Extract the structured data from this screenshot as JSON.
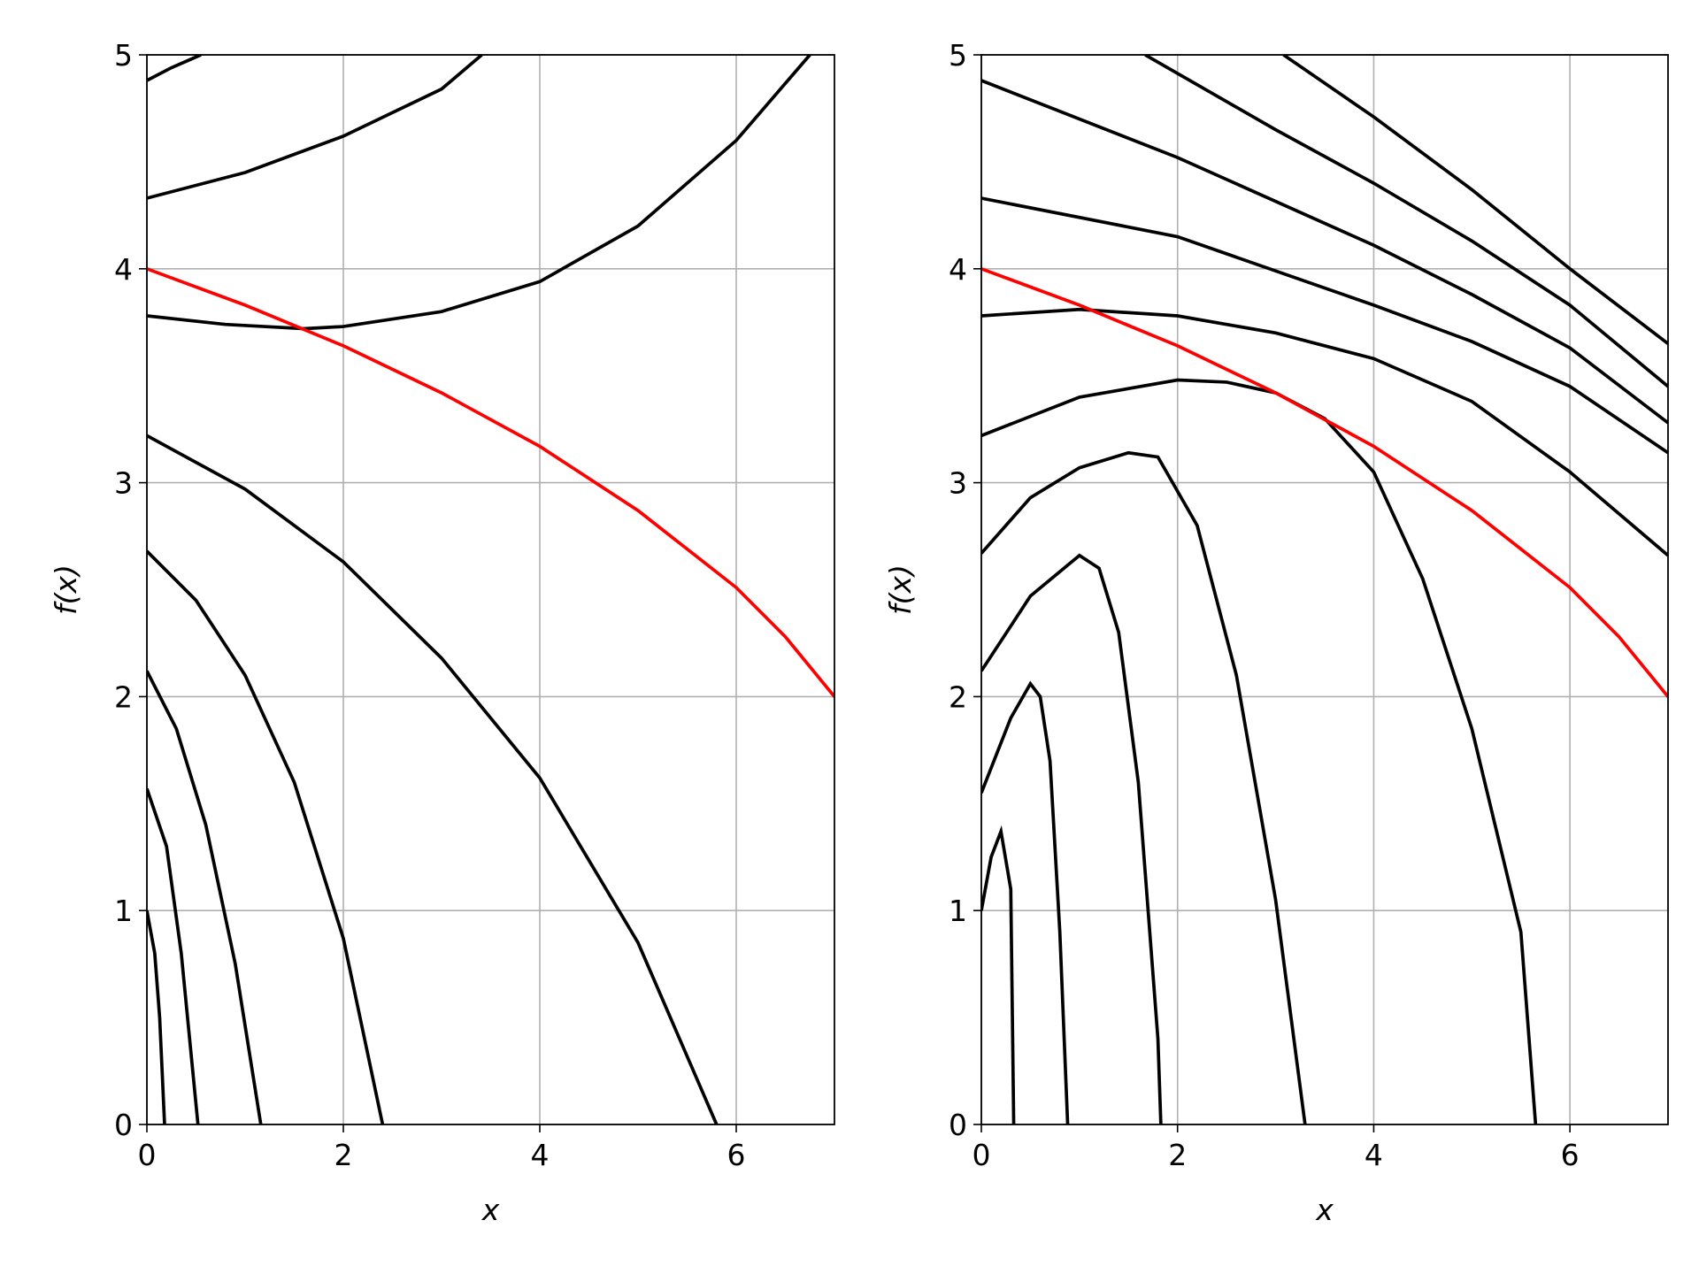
{
  "chart_data": [
    {
      "type": "line",
      "xlabel": "x",
      "ylabel": "f(x)",
      "xlim": [
        0,
        7
      ],
      "ylim": [
        0,
        5
      ],
      "xticks": [
        0,
        2,
        4,
        6
      ],
      "yticks": [
        0,
        1,
        2,
        3,
        4,
        5
      ],
      "grid": true,
      "series": [
        {
          "color": "#000000",
          "x": [
            0,
            0.25,
            0.55
          ],
          "values": [
            4.88,
            4.94,
            5
          ]
        },
        {
          "color": "#000000",
          "x": [
            0,
            1,
            2,
            3,
            3.41
          ],
          "values": [
            4.33,
            4.45,
            4.62,
            4.84,
            5
          ]
        },
        {
          "color": "#000000",
          "x": [
            0,
            0.8,
            1.6,
            2,
            3,
            4,
            5,
            6,
            6.75
          ],
          "values": [
            3.78,
            3.74,
            3.72,
            3.73,
            3.8,
            3.94,
            4.2,
            4.6,
            5
          ]
        },
        {
          "color": "#000000",
          "x": [
            0,
            1,
            2,
            3,
            4,
            5,
            5.8
          ],
          "values": [
            3.22,
            2.97,
            2.63,
            2.18,
            1.62,
            0.85,
            0
          ]
        },
        {
          "color": "#000000",
          "x": [
            0,
            0.5,
            1,
            1.5,
            2,
            2.4
          ],
          "values": [
            2.68,
            2.45,
            2.1,
            1.6,
            0.87,
            0
          ]
        },
        {
          "color": "#000000",
          "x": [
            0,
            0.3,
            0.6,
            0.9,
            1.16
          ],
          "values": [
            2.12,
            1.85,
            1.4,
            0.75,
            0
          ]
        },
        {
          "color": "#000000",
          "x": [
            0,
            0.2,
            0.35,
            0.52
          ],
          "values": [
            1.57,
            1.3,
            0.8,
            0
          ]
        },
        {
          "color": "#000000",
          "x": [
            0,
            0.08,
            0.13,
            0.18
          ],
          "values": [
            1.0,
            0.8,
            0.5,
            0
          ]
        },
        {
          "color": "#ff0000",
          "x": [
            0,
            1,
            2,
            3,
            4,
            5,
            6,
            6.5,
            7
          ],
          "values": [
            4.0,
            3.83,
            3.64,
            3.42,
            3.17,
            2.87,
            2.51,
            2.28,
            2.0
          ]
        }
      ]
    },
    {
      "type": "line",
      "xlabel": "x",
      "ylabel": "f(x)",
      "xlim": [
        0,
        7
      ],
      "ylim": [
        0,
        5
      ],
      "xticks": [
        0,
        2,
        4,
        6
      ],
      "yticks": [
        0,
        1,
        2,
        3,
        4,
        5
      ],
      "grid": true,
      "series": [
        {
          "color": "#000000",
          "x": [
            3.08,
            4,
            5,
            6,
            7
          ],
          "values": [
            5,
            4.71,
            4.37,
            4.0,
            3.65
          ]
        },
        {
          "color": "#000000",
          "x": [
            1.67,
            3,
            4,
            5,
            6,
            7
          ],
          "values": [
            5,
            4.65,
            4.4,
            4.13,
            3.83,
            3.45
          ]
        },
        {
          "color": "#000000",
          "x": [
            0,
            2,
            4,
            5,
            6,
            7
          ],
          "values": [
            4.88,
            4.52,
            4.11,
            3.88,
            3.63,
            3.28
          ]
        },
        {
          "color": "#000000",
          "x": [
            0,
            2,
            4,
            5,
            6,
            7
          ],
          "values": [
            4.33,
            4.15,
            3.83,
            3.66,
            3.45,
            3.14
          ]
        },
        {
          "color": "#000000",
          "x": [
            0,
            1,
            2,
            3,
            4,
            5,
            6,
            7
          ],
          "values": [
            3.78,
            3.81,
            3.78,
            3.7,
            3.58,
            3.38,
            3.05,
            2.66
          ]
        },
        {
          "color": "#000000",
          "x": [
            0,
            1,
            2,
            2.5,
            3,
            3.5,
            4,
            4.5,
            5,
            5.5,
            5.65
          ],
          "values": [
            3.22,
            3.4,
            3.48,
            3.47,
            3.42,
            3.3,
            3.05,
            2.55,
            1.85,
            0.9,
            0
          ]
        },
        {
          "color": "#000000",
          "x": [
            0,
            0.5,
            1,
            1.5,
            1.8,
            2.2,
            2.6,
            3,
            3.3
          ],
          "values": [
            2.67,
            2.93,
            3.07,
            3.14,
            3.12,
            2.8,
            2.1,
            1.05,
            0
          ]
        },
        {
          "color": "#000000",
          "x": [
            0,
            0.5,
            1,
            1.2,
            1.4,
            1.6,
            1.8,
            1.83
          ],
          "values": [
            2.12,
            2.47,
            2.66,
            2.6,
            2.3,
            1.6,
            0.4,
            0
          ]
        },
        {
          "color": "#000000",
          "x": [
            0,
            0.3,
            0.5,
            0.6,
            0.7,
            0.8,
            0.88
          ],
          "values": [
            1.55,
            1.9,
            2.06,
            2.0,
            1.7,
            0.9,
            0
          ]
        },
        {
          "color": "#000000",
          "x": [
            0,
            0.1,
            0.2,
            0.3,
            0.33
          ],
          "values": [
            1.0,
            1.25,
            1.37,
            1.1,
            0
          ]
        },
        {
          "color": "#ff0000",
          "x": [
            0,
            1,
            2,
            3,
            4,
            5,
            6,
            6.5,
            7
          ],
          "values": [
            4.0,
            3.83,
            3.64,
            3.42,
            3.17,
            2.87,
            2.51,
            2.28,
            2.0
          ]
        }
      ]
    }
  ]
}
